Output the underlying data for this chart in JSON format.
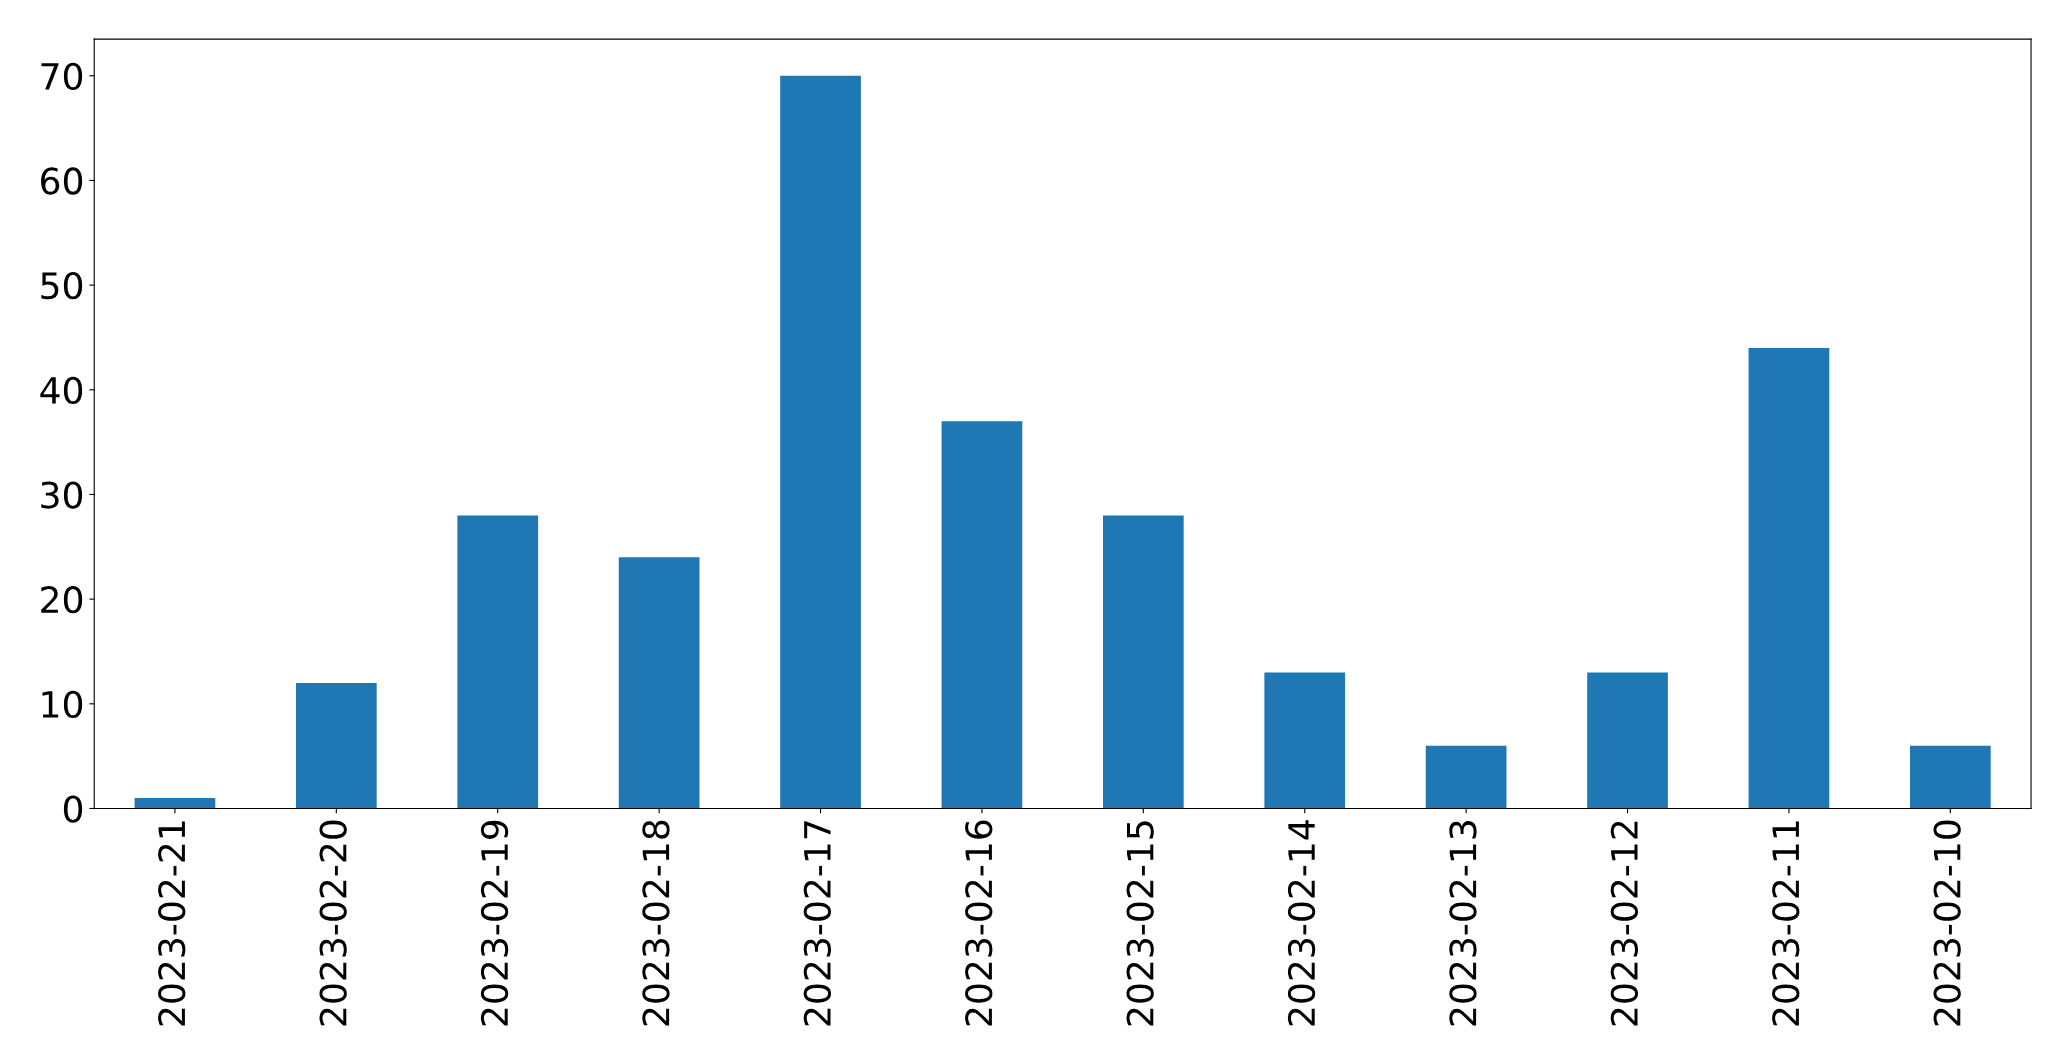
{
  "chart_data": {
    "type": "bar",
    "categories": [
      "2023-02-21",
      "2023-02-20",
      "2023-02-19",
      "2023-02-18",
      "2023-02-17",
      "2023-02-16",
      "2023-02-15",
      "2023-02-14",
      "2023-02-13",
      "2023-02-12",
      "2023-02-11",
      "2023-02-10"
    ],
    "values": [
      1,
      12,
      28,
      24,
      70,
      37,
      28,
      13,
      6,
      13,
      44,
      6
    ],
    "color": "#1f77b4",
    "ylim": [
      0,
      73.5
    ],
    "yticks": [
      0,
      10,
      20,
      30,
      40,
      50,
      60,
      70
    ],
    "grid": false
  }
}
